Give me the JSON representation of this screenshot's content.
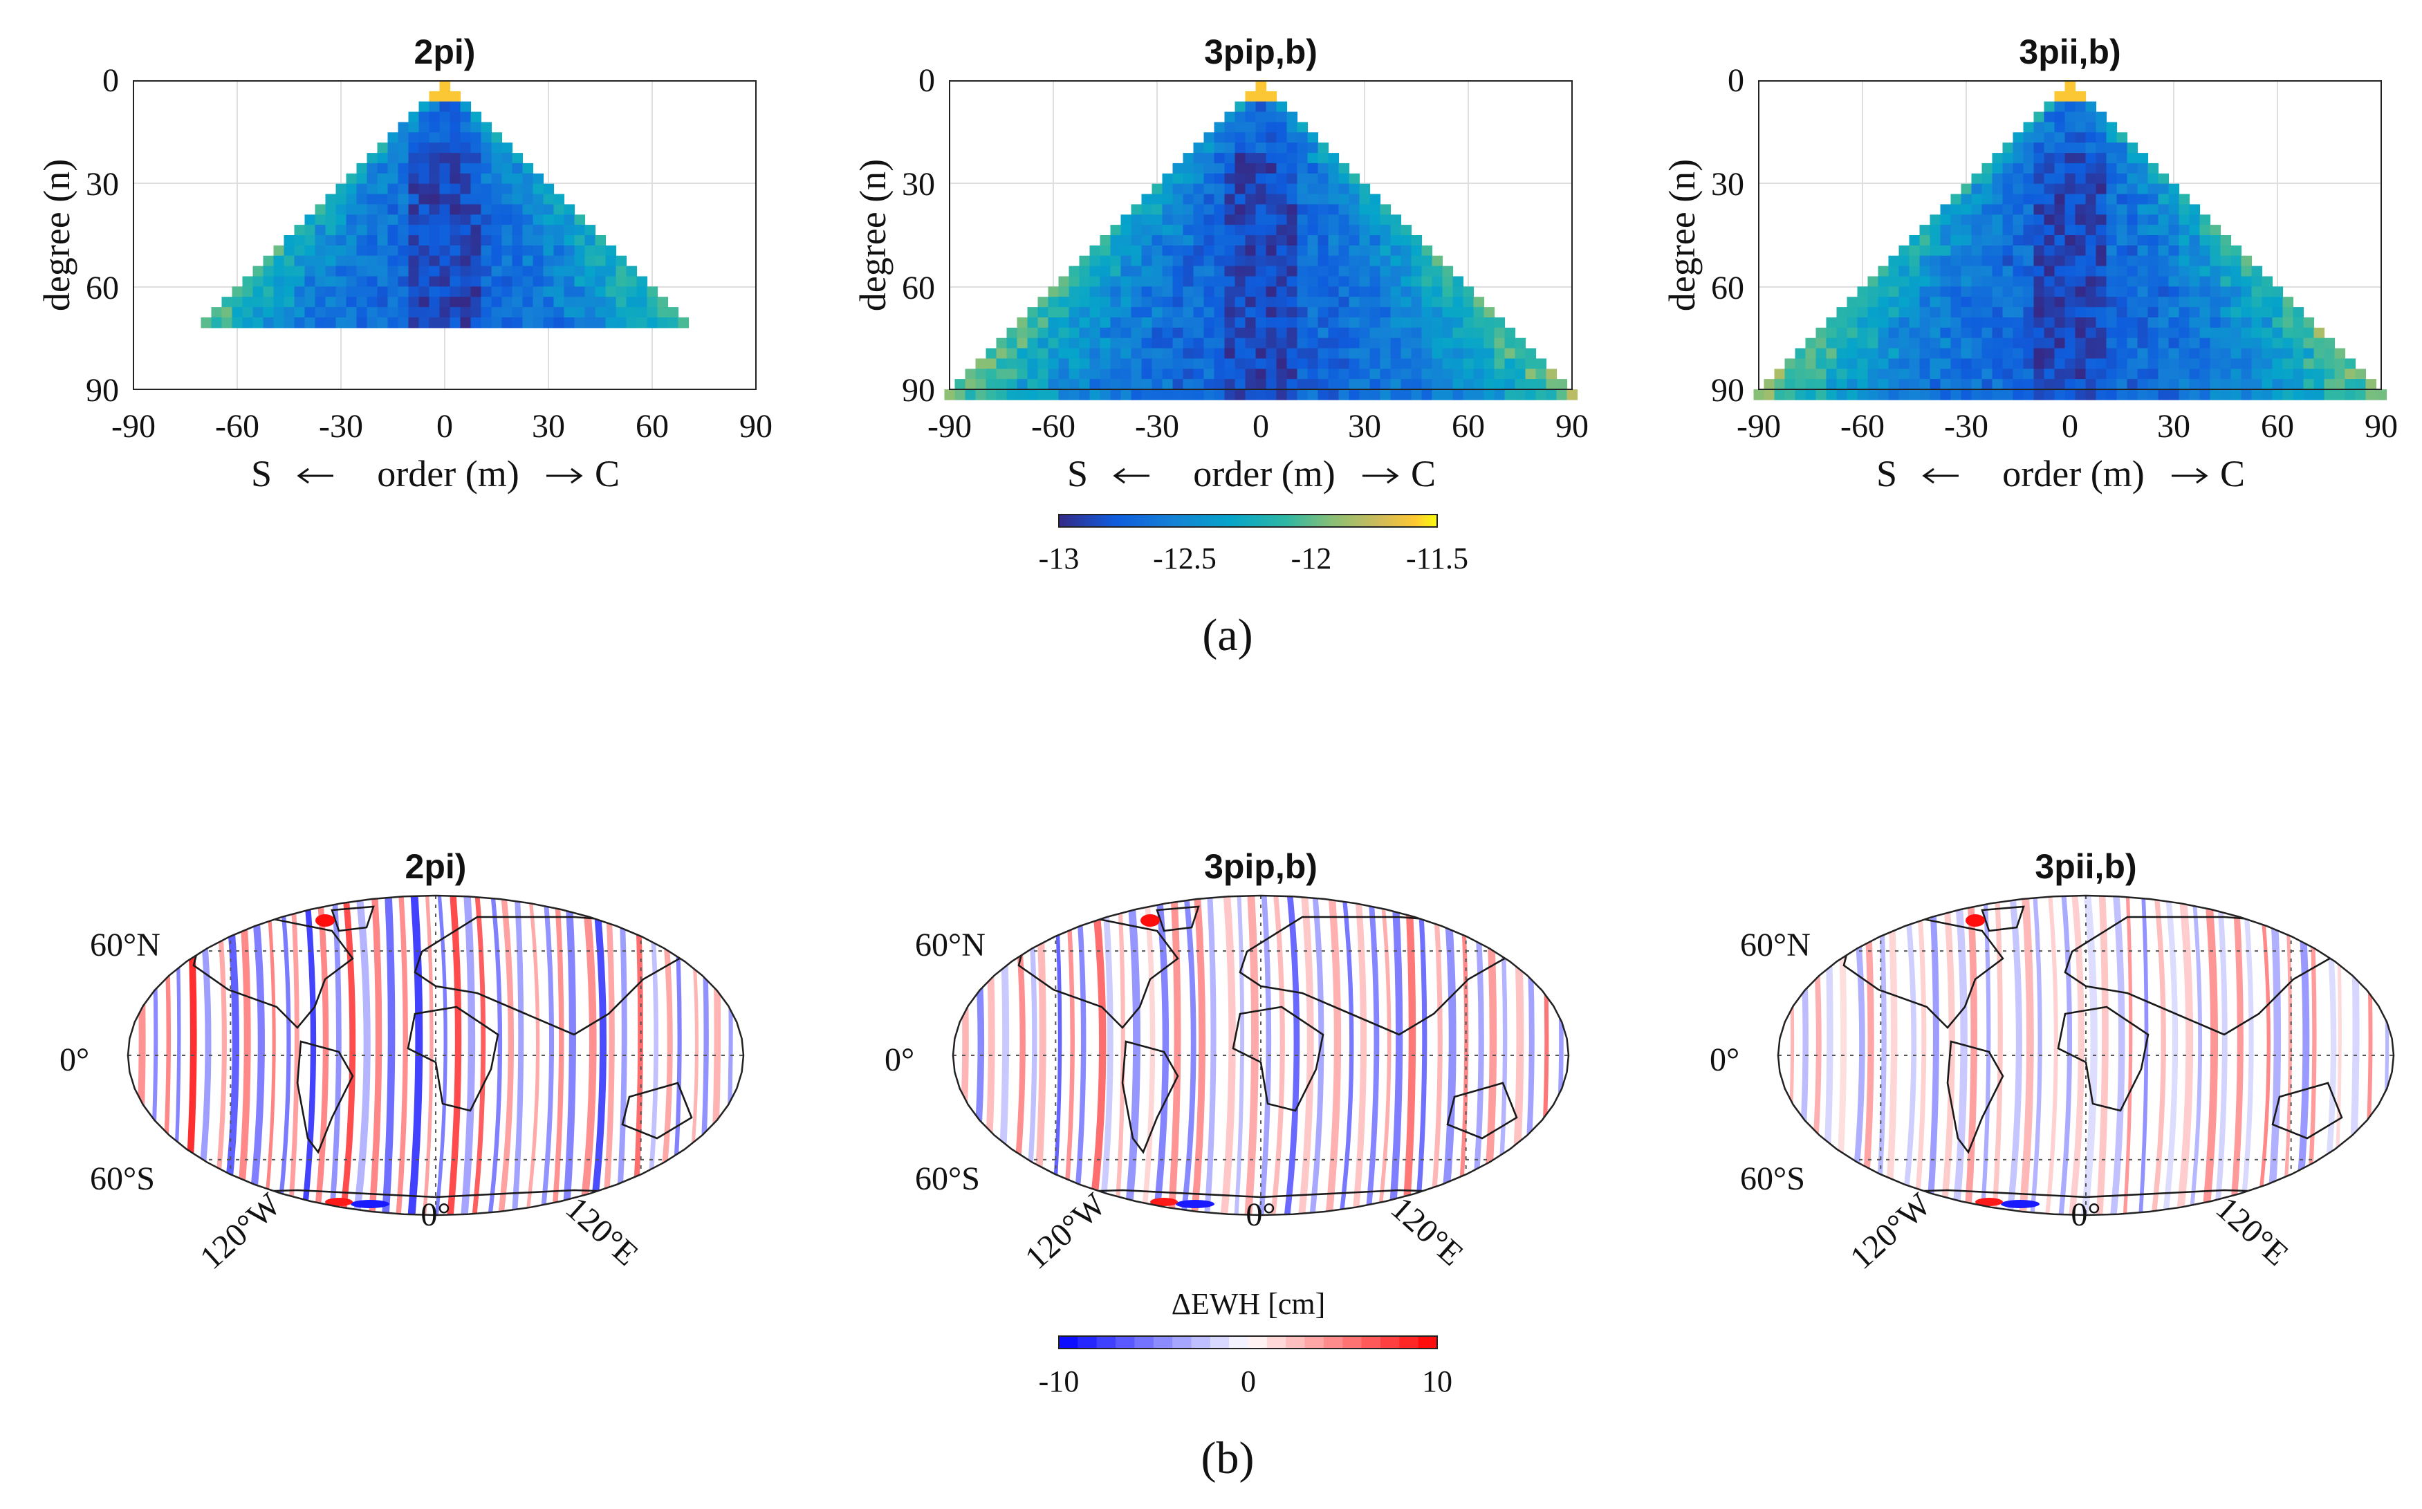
{
  "figure_label_a": "(a)",
  "figure_label_b": "(b)",
  "chart_data": [
    {
      "type": "heatmap",
      "title": "2pi)",
      "xlabel_left": "S",
      "xlabel_mid": "order (m)",
      "xlabel_right": "C",
      "ylabel": "degree (n)",
      "xlim": [
        -90,
        90
      ],
      "ylim": [
        90,
        0
      ],
      "xticks": [
        "-90",
        "-60",
        "-30",
        "0",
        "30",
        "60",
        "90"
      ],
      "yticks": [
        "0",
        "30",
        "60",
        "90"
      ],
      "max_degree": 70,
      "value_range": [
        -13,
        -11.5
      ]
    },
    {
      "type": "heatmap",
      "title": "3pip,b)",
      "xlabel_left": "S",
      "xlabel_mid": "order (m)",
      "xlabel_right": "C",
      "ylabel": "degree (n)",
      "xlim": [
        -90,
        90
      ],
      "ylim": [
        90,
        0
      ],
      "xticks": [
        "-90",
        "-60",
        "-30",
        "0",
        "30",
        "60",
        "90"
      ],
      "yticks": [
        "0",
        "30",
        "60",
        "90"
      ],
      "max_degree": 90,
      "value_range": [
        -13,
        -11.5
      ]
    },
    {
      "type": "heatmap",
      "title": "3pii,b)",
      "xlabel_left": "S",
      "xlabel_mid": "order (m)",
      "xlabel_right": "C",
      "ylabel": "degree (n)",
      "xlim": [
        -90,
        90
      ],
      "ylim": [
        90,
        0
      ],
      "xticks": [
        "-90",
        "-60",
        "-30",
        "0",
        "30",
        "60",
        "90"
      ],
      "yticks": [
        "0",
        "30",
        "60",
        "90"
      ],
      "max_degree": 90,
      "value_range": [
        -13,
        -11.5
      ]
    },
    {
      "type": "map",
      "title": "2pi)",
      "lat_labels": [
        "60°N",
        "0°",
        "60°S"
      ],
      "lon_labels": [
        "120°W",
        "0°",
        "120°E"
      ],
      "stripe_intensity": 1.0
    },
    {
      "type": "map",
      "title": "3pip,b)",
      "lat_labels": [
        "60°N",
        "0°",
        "60°S"
      ],
      "lon_labels": [
        "120°W",
        "0°",
        "120°E"
      ],
      "stripe_intensity": 0.8
    },
    {
      "type": "map",
      "title": "3pii,b)",
      "lat_labels": [
        "60°N",
        "0°",
        "60°S"
      ],
      "lon_labels": [
        "120°W",
        "0°",
        "120°E"
      ],
      "stripe_intensity": 0.55
    }
  ],
  "colorbar_a": {
    "colormap": "parula",
    "range": [
      -13,
      -11.5
    ],
    "ticks": [
      "-13",
      "-12.5",
      "-12",
      "-11.5"
    ]
  },
  "colorbar_b": {
    "title": "ΔEWH [cm]",
    "colormap": "blue-white-red",
    "range": [
      -10,
      10
    ],
    "ticks": [
      "-10",
      "0",
      "10"
    ],
    "steps": 20
  }
}
